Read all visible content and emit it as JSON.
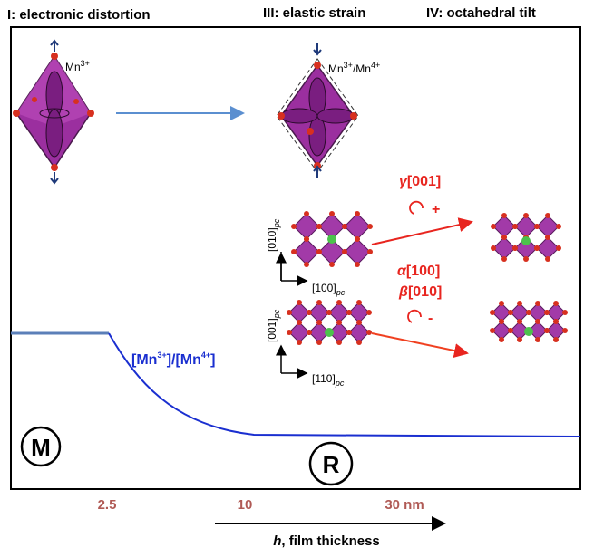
{
  "header": {
    "panels": [
      "I: electronic distortion",
      "III: elastic strain",
      "IV: octahedral tilt"
    ]
  },
  "octahedra": {
    "mn3": [
      "Mn",
      "3+"
    ],
    "mixed": [
      "Mn",
      "3+",
      "/Mn",
      "4+"
    ]
  },
  "ratio": [
    "[Mn",
    "3+",
    "]/[Mn",
    "4+",
    "]"
  ],
  "tilts": {
    "gamma": [
      "γ",
      "[001]"
    ],
    "gamma_sign": "+",
    "alpha": [
      "α",
      "[100]"
    ],
    "beta": [
      "β",
      "[010]"
    ],
    "ab_sign": "-"
  },
  "axes": {
    "a010": [
      "[010]",
      "pc"
    ],
    "a100": [
      "[100]",
      "pc"
    ],
    "a001": [
      "[001]",
      "pc"
    ],
    "a110": [
      "[110]",
      "pc"
    ]
  },
  "phases": {
    "m": "M",
    "r": "R"
  },
  "thickness": {
    "ticks": [
      "2.5",
      "10",
      "30 nm"
    ],
    "label": [
      "h",
      ", film thickness"
    ]
  }
}
